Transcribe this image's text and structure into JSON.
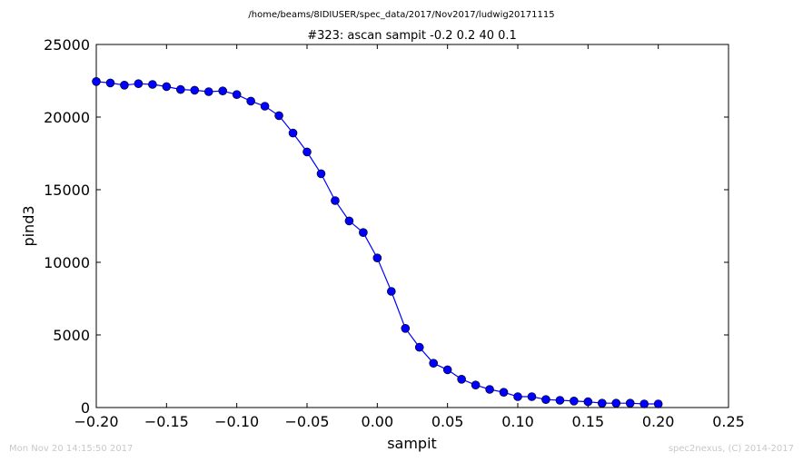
{
  "suptitle": "/home/beams/8IDIUSER/spec_data/2017/Nov2017/ludwig20171115",
  "footer": {
    "left": "Mon Nov 20 14:15:50 2017",
    "right": "spec2nexus, (C) 2014-2017"
  },
  "chart_data": {
    "type": "line",
    "title": "#323: ascan  sampit -0.2 0.2  40 0.1",
    "xlabel": "sampit",
    "ylabel": "pind3",
    "xlim": [
      -0.2,
      0.25
    ],
    "ylim": [
      0,
      25000
    ],
    "xticks": [
      "−0.20",
      "−0.15",
      "−0.10",
      "−0.05",
      "0.00",
      "0.05",
      "0.10",
      "0.15",
      "0.20",
      "0.25"
    ],
    "xtick_values": [
      -0.2,
      -0.15,
      -0.1,
      -0.05,
      0.0,
      0.05,
      0.1,
      0.15,
      0.2,
      0.25
    ],
    "yticks": [
      "0",
      "5000",
      "10000",
      "15000",
      "20000",
      "25000"
    ],
    "ytick_values": [
      0,
      5000,
      10000,
      15000,
      20000,
      25000
    ],
    "grid": false,
    "series": [
      {
        "color": "#0000ff",
        "marker": "circle",
        "x": [
          -0.2,
          -0.19,
          -0.18,
          -0.17,
          -0.16,
          -0.15,
          -0.14,
          -0.13,
          -0.12,
          -0.11,
          -0.1,
          -0.09,
          -0.08,
          -0.07,
          -0.06,
          -0.05,
          -0.04,
          -0.03,
          -0.02,
          -0.01,
          0.0,
          0.01,
          0.02,
          0.03,
          0.04,
          0.05,
          0.06,
          0.07,
          0.08,
          0.09,
          0.1,
          0.11,
          0.12,
          0.13,
          0.14,
          0.15,
          0.16,
          0.17,
          0.18,
          0.19,
          0.2
        ],
        "y": [
          22450,
          22350,
          22200,
          22300,
          22250,
          22100,
          21900,
          21850,
          21750,
          21800,
          21550,
          21100,
          20750,
          20100,
          18900,
          17600,
          16100,
          14250,
          12850,
          12050,
          10300,
          8000,
          5450,
          4150,
          3050,
          2600,
          1950,
          1550,
          1250,
          1050,
          750,
          750,
          550,
          500,
          450,
          400,
          300,
          300,
          300,
          250,
          250
        ]
      }
    ]
  }
}
